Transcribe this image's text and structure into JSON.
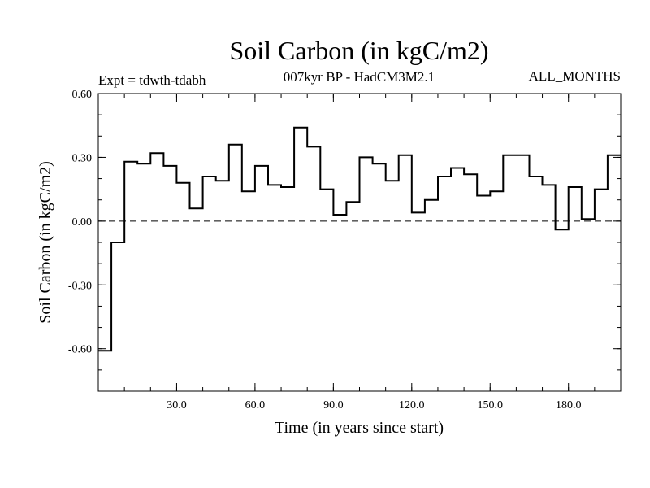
{
  "chart_data": {
    "type": "line",
    "step": true,
    "title": "Soil Carbon (in kgC/m2)",
    "subtitle": "007kyr BP - HadCM3M2.1",
    "left_note": "Expt = tdwth-tdabh",
    "right_note": "ALL_MONTHS",
    "xlabel": "Time (in years since start)",
    "ylabel": "Soil Carbon (in kgC/m2)",
    "xlim": [
      0,
      200
    ],
    "ylim": [
      -0.8,
      0.6
    ],
    "x_ticks": [
      {
        "value": 30,
        "label": "30.0"
      },
      {
        "value": 60,
        "label": "60.0"
      },
      {
        "value": 90,
        "label": "90.0"
      },
      {
        "value": 120,
        "label": "120.0"
      },
      {
        "value": 150,
        "label": "150.0"
      },
      {
        "value": 180,
        "label": "180.0"
      }
    ],
    "y_ticks": [
      {
        "value": 0.6,
        "label": "0.60"
      },
      {
        "value": 0.3,
        "label": "0.30"
      },
      {
        "value": 0.0,
        "label": "0.00"
      },
      {
        "value": -0.3,
        "label": "-0.30"
      },
      {
        "value": -0.6,
        "label": "-0.60"
      }
    ],
    "zero_line": "dashed",
    "series": [
      {
        "x": [
          0,
          5,
          10,
          15,
          20,
          25,
          30,
          35,
          40,
          45,
          50,
          55,
          60,
          65,
          70,
          75,
          80,
          85,
          90,
          95,
          100,
          105,
          110,
          115,
          120,
          125,
          130,
          135,
          140,
          145,
          150,
          155,
          160,
          165,
          170,
          175,
          180,
          185,
          190,
          195
        ],
        "values": [
          -0.61,
          -0.1,
          0.28,
          0.27,
          0.32,
          0.26,
          0.18,
          0.06,
          0.21,
          0.19,
          0.36,
          0.14,
          0.26,
          0.17,
          0.16,
          0.44,
          0.35,
          0.15,
          0.03,
          0.09,
          0.3,
          0.27,
          0.19,
          0.31,
          0.04,
          0.1,
          0.21,
          0.25,
          0.22,
          0.12,
          0.14,
          0.31,
          0.31,
          0.21,
          0.17,
          -0.04,
          0.16,
          0.01,
          0.15,
          0.31
        ]
      }
    ]
  }
}
